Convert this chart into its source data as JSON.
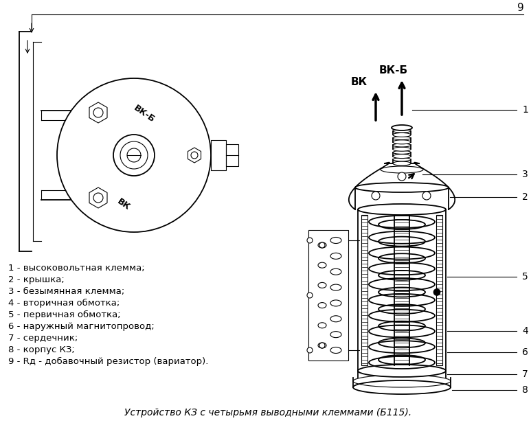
{
  "title": "Устройство КЗ с четырьмя выводными клеммами (Б115).",
  "legend_items": [
    "1 - высоковольтная клемма;",
    "2 - крышка;",
    "3 - безымянная клемма;",
    "4 - вторичная обмотка;",
    "5 - первичная обмотка;",
    "6 - наружный магнитопровод;",
    "7 - сердечник;",
    "8 - корпус КЗ;",
    "9 - Rд - добавочный резистор (вариатор)."
  ],
  "bg_color": "#ffffff",
  "line_color": "#000000",
  "title_fontsize": 10,
  "legend_fontsize": 9.5
}
